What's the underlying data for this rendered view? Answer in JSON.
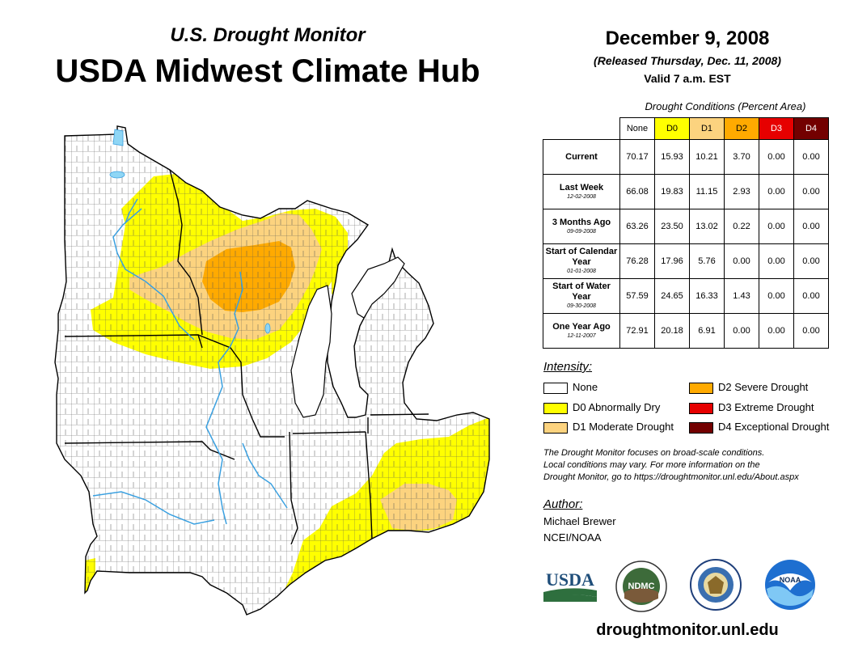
{
  "header": {
    "subtitle": "U.S. Drought Monitor",
    "title": "USDA Midwest Climate Hub",
    "date": "December 9, 2008",
    "released": "(Released Thursday, Dec. 11, 2008)",
    "valid": "Valid 7 a.m. EST"
  },
  "table": {
    "caption": "Drought Conditions (Percent Area)",
    "columns": [
      "None",
      "D0",
      "D1",
      "D2",
      "D3",
      "D4"
    ],
    "column_colors": [
      "#ffffff",
      "#ffff00",
      "#fcd37f",
      "#ffaa00",
      "#e60000",
      "#730000"
    ],
    "rows": [
      {
        "label": "Current",
        "sublabel": "",
        "values": [
          "70.17",
          "15.93",
          "10.21",
          "3.70",
          "0.00",
          "0.00"
        ]
      },
      {
        "label": "Last Week",
        "sublabel": "12-02-2008",
        "values": [
          "66.08",
          "19.83",
          "11.15",
          "2.93",
          "0.00",
          "0.00"
        ]
      },
      {
        "label": "3 Months Ago",
        "sublabel": "09-09-2008",
        "values": [
          "63.26",
          "23.50",
          "13.02",
          "0.22",
          "0.00",
          "0.00"
        ]
      },
      {
        "label": "Start of Calendar Year",
        "sublabel": "01-01-2008",
        "values": [
          "76.28",
          "17.96",
          "5.76",
          "0.00",
          "0.00",
          "0.00"
        ]
      },
      {
        "label": "Start of Water Year",
        "sublabel": "09-30-2008",
        "values": [
          "57.59",
          "24.65",
          "16.33",
          "1.43",
          "0.00",
          "0.00"
        ]
      },
      {
        "label": "One Year Ago",
        "sublabel": "12-11-2007",
        "values": [
          "72.91",
          "20.18",
          "6.91",
          "0.00",
          "0.00",
          "0.00"
        ]
      }
    ]
  },
  "legend": {
    "title": "Intensity:",
    "items": [
      {
        "label": "None",
        "color": "#ffffff"
      },
      {
        "label": "D0 Abnormally Dry",
        "color": "#ffff00"
      },
      {
        "label": "D1 Moderate Drought",
        "color": "#fcd37f"
      },
      {
        "label": "D2 Severe Drought",
        "color": "#ffaa00"
      },
      {
        "label": "D3 Extreme Drought",
        "color": "#e60000"
      },
      {
        "label": "D4 Exceptional Drought",
        "color": "#730000"
      }
    ]
  },
  "note": {
    "line1": "The Drought Monitor focuses on broad-scale conditions.",
    "line2": "Local conditions may vary. For more information on the",
    "line3": "Drought Monitor, go to https://droughtmonitor.unl.edu/About.aspx"
  },
  "author": {
    "title": "Author:",
    "name": "Michael Brewer",
    "org": "NCEI/NOAA"
  },
  "logos": {
    "usda": "USDA",
    "ndmc": "NDMC",
    "noaa": "NOAA"
  },
  "website": "droughtmonitor.unl.edu",
  "colors": {
    "water": "#8fd6f5",
    "river": "#3aa0e0"
  }
}
